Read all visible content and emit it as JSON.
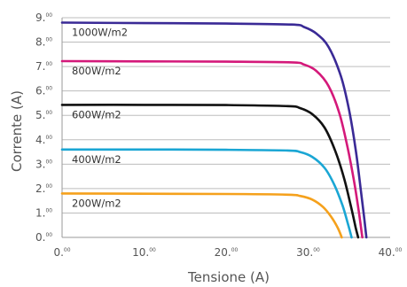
{
  "chart_data": {
    "type": "line",
    "xlabel": "Tensione (A)",
    "ylabel": "Corrente (A)",
    "xlim": [
      0,
      40
    ],
    "ylim": [
      0,
      9
    ],
    "grid": "horizontal",
    "x_ticks": [
      {
        "main": "0.",
        "sup": "00",
        "value": 0
      },
      {
        "main": "10.",
        "sup": "00",
        "value": 10
      },
      {
        "main": "20.",
        "sup": "00",
        "value": 20
      },
      {
        "main": "30.",
        "sup": "00",
        "value": 30
      },
      {
        "main": "40.",
        "sup": "00",
        "value": 40
      }
    ],
    "y_ticks": [
      {
        "main": "0.",
        "sup": "00",
        "value": 0
      },
      {
        "main": "1.",
        "sup": "00",
        "value": 1
      },
      {
        "main": "2.",
        "sup": "00",
        "value": 2
      },
      {
        "main": "3.",
        "sup": "00",
        "value": 3
      },
      {
        "main": "4.",
        "sup": "00",
        "value": 4
      },
      {
        "main": "5.",
        "sup": "00",
        "value": 5
      },
      {
        "main": "6.",
        "sup": "00",
        "value": 6
      },
      {
        "main": "7.",
        "sup": "00",
        "value": 7
      },
      {
        "main": "8.",
        "sup": "00",
        "value": 8
      },
      {
        "main": "9.",
        "sup": "00",
        "value": 9
      }
    ],
    "series": [
      {
        "name": "1000W/m2",
        "color": "#3a2a96",
        "points": [
          [
            0,
            8.8
          ],
          [
            10,
            8.78
          ],
          [
            20,
            8.76
          ],
          [
            28,
            8.72
          ],
          [
            29.5,
            8.62
          ],
          [
            31,
            8.35
          ],
          [
            32.5,
            7.8
          ],
          [
            34,
            6.6
          ],
          [
            35,
            5.2
          ],
          [
            35.8,
            3.6
          ],
          [
            36.4,
            2.0
          ],
          [
            36.8,
            0.9
          ],
          [
            37.1,
            0
          ]
        ]
      },
      {
        "name": "800W/m2",
        "color": "#d4197a",
        "points": [
          [
            0,
            7.22
          ],
          [
            10,
            7.21
          ],
          [
            20,
            7.2
          ],
          [
            28,
            7.17
          ],
          [
            29.5,
            7.08
          ],
          [
            31,
            6.82
          ],
          [
            32.5,
            6.2
          ],
          [
            33.8,
            5.1
          ],
          [
            34.8,
            3.7
          ],
          [
            35.6,
            2.3
          ],
          [
            36.2,
            1.0
          ],
          [
            36.6,
            0
          ]
        ]
      },
      {
        "name": "600W/m2",
        "color": "#111111",
        "points": [
          [
            0,
            5.43
          ],
          [
            10,
            5.43
          ],
          [
            20,
            5.42
          ],
          [
            27.5,
            5.38
          ],
          [
            29,
            5.3
          ],
          [
            30.5,
            5.05
          ],
          [
            32,
            4.5
          ],
          [
            33.3,
            3.55
          ],
          [
            34.4,
            2.4
          ],
          [
            35.2,
            1.3
          ],
          [
            35.8,
            0.4
          ],
          [
            36.1,
            0
          ]
        ]
      },
      {
        "name": "400W/m2",
        "color": "#1aa6d4",
        "points": [
          [
            0,
            3.6
          ],
          [
            10,
            3.6
          ],
          [
            20,
            3.59
          ],
          [
            27.5,
            3.56
          ],
          [
            29,
            3.5
          ],
          [
            30.5,
            3.3
          ],
          [
            32,
            2.85
          ],
          [
            33.2,
            2.15
          ],
          [
            34.2,
            1.3
          ],
          [
            34.9,
            0.5
          ],
          [
            35.3,
            0
          ]
        ]
      },
      {
        "name": "200W/m2",
        "color": "#f5a11c",
        "points": [
          [
            0,
            1.8
          ],
          [
            10,
            1.79
          ],
          [
            20,
            1.78
          ],
          [
            27.5,
            1.75
          ],
          [
            29,
            1.7
          ],
          [
            30.5,
            1.55
          ],
          [
            31.8,
            1.25
          ],
          [
            32.8,
            0.85
          ],
          [
            33.6,
            0.4
          ],
          [
            34.1,
            0
          ]
        ]
      }
    ]
  }
}
